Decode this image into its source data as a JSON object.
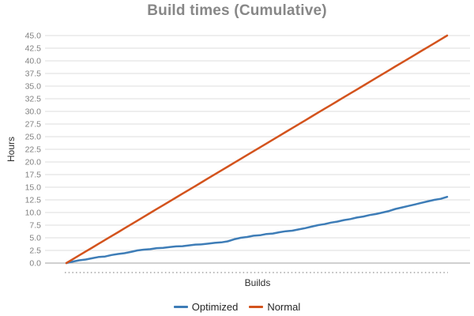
{
  "chart_data": {
    "type": "line",
    "title": "Build times (Cumulative)",
    "xlabel": "Builds",
    "ylabel": "Hours",
    "ylim": [
      0,
      45
    ],
    "ytick_interval": 2.5,
    "ytick_labels": [
      "45.0",
      "42.5",
      "40.0",
      "37.5",
      "35.0",
      "32.5",
      "30.0",
      "27.5",
      "25.0",
      "22.5",
      "20.0",
      "17.5",
      "15.0",
      "12.5",
      "10.0",
      "7.5",
      "5.0",
      "2.5",
      "0.0"
    ],
    "xtick_style": "dense dotted tick marks along baseline, one per build, no numeric x labels",
    "grid": "horizontal gridlines only",
    "legend_position": "bottom-center",
    "series": [
      {
        "name": "Optimized",
        "color": "#3e7db7",
        "values": [
          0.0,
          0.3,
          0.55,
          0.7,
          0.95,
          1.2,
          1.3,
          1.6,
          1.8,
          1.95,
          2.2,
          2.5,
          2.65,
          2.75,
          2.95,
          3.0,
          3.15,
          3.3,
          3.35,
          3.5,
          3.65,
          3.7,
          3.85,
          4.0,
          4.1,
          4.3,
          4.7,
          5.0,
          5.15,
          5.4,
          5.5,
          5.75,
          5.85,
          6.1,
          6.3,
          6.4,
          6.65,
          6.9,
          7.2,
          7.5,
          7.7,
          8.0,
          8.2,
          8.5,
          8.7,
          9.0,
          9.2,
          9.5,
          9.7,
          10.0,
          10.3,
          10.7,
          11.0,
          11.3,
          11.6,
          11.9,
          12.2,
          12.5,
          12.7,
          13.1
        ]
      },
      {
        "name": "Normal",
        "color": "#d3531d",
        "values": [
          0.0,
          0.76,
          1.53,
          2.29,
          3.05,
          3.81,
          4.58,
          5.34,
          6.1,
          6.86,
          7.63,
          8.39,
          9.15,
          9.92,
          10.68,
          11.44,
          12.2,
          12.97,
          13.73,
          14.49,
          15.25,
          16.02,
          16.78,
          17.54,
          18.31,
          19.07,
          19.83,
          20.59,
          21.36,
          22.12,
          22.88,
          23.64,
          24.41,
          25.17,
          25.93,
          26.69,
          27.46,
          28.22,
          28.98,
          29.75,
          30.51,
          31.27,
          32.03,
          32.8,
          33.56,
          34.32,
          35.08,
          35.85,
          36.61,
          37.37,
          38.14,
          38.9,
          39.66,
          40.42,
          41.19,
          41.95,
          42.71,
          43.47,
          44.24,
          45.0
        ]
      }
    ],
    "palette": {
      "gridline": "#dedede",
      "zero_axis_line": "#a0a0a0",
      "tick_label": "#7f7f7f",
      "dotted_xticks": "#8f8f8f",
      "title": "#878787",
      "axis_title": "#2e2e2e",
      "legend_text": "#262626",
      "background": "#ffffff"
    }
  }
}
